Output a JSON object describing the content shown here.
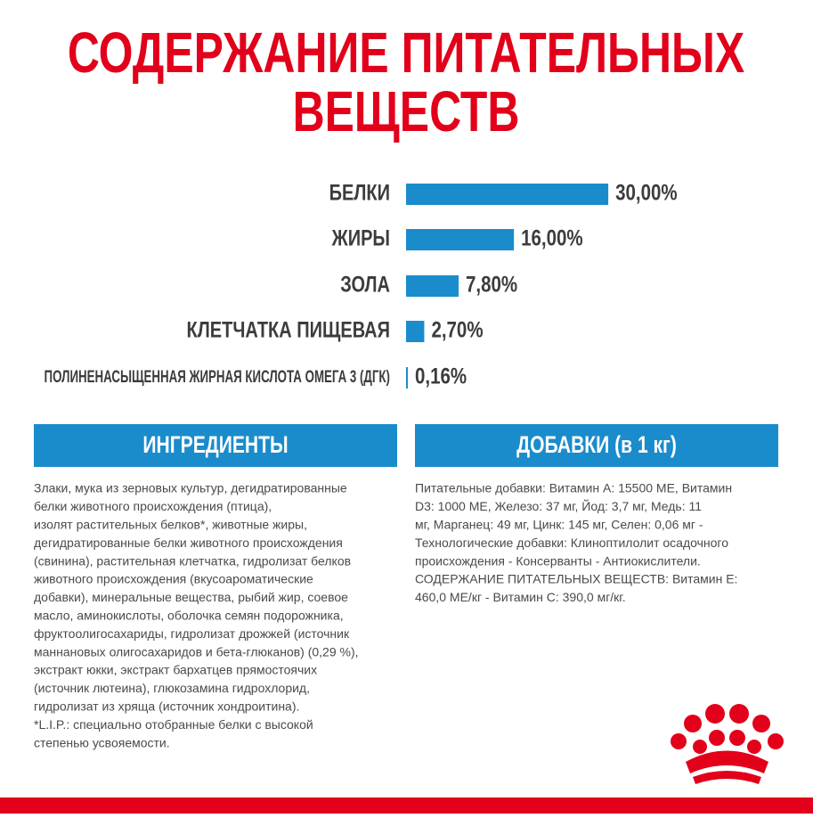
{
  "chart_data": {
    "type": "bar",
    "orientation": "horizontal",
    "title": [
      "СОДЕРЖАНИЕ ПИТАТЕЛЬНЫХ",
      "ВЕЩЕСТВ"
    ],
    "categories": [
      "БЕЛКИ",
      "ЖИРЫ",
      "ЗОЛА",
      "КЛЕТЧАТКА ПИЩЕВАЯ",
      "ПОЛИНЕНАСЫЩЕННАЯ ЖИРНАЯ КИСЛОТА ОМЕГА 3 (ДГК)"
    ],
    "values": [
      30,
      16,
      7.8,
      2.7,
      0.16
    ],
    "value_labels": [
      "30,00%",
      "16,00%",
      "7,80%",
      "2,70%",
      "0,16%"
    ],
    "color": "#1a8ccc"
  },
  "ingredients": {
    "heading": "ИНГРЕДИЕНТЫ",
    "lines": [
      "Злаки, мука из зерновых культур, дегидратированные",
      "белки животного происхождения (птица),",
      "изолят растительных белков*, животные жиры,",
      "дегидратированные белки животного происхождения",
      "(свинина), растительная клетчатка, гидролизат белков",
      "животного происхождения (вкусоароматические",
      "добавки), минеральные вещества, рыбий жир, соевое",
      "масло, аминокислоты, оболочка семян подорожника,",
      "фруктоолигосахариды, гидролизат дрожжей (источник",
      "маннановых олигосахаридов и бета-глюканов) (0,29 %),",
      "экстракт юкки, экстракт бархатцев прямостоячих",
      "(источник лютеина), глюкозамина гидрохлорид,",
      "гидролизат из хряща (источник хондроитина).",
      "*L.I.P.: специально отобранные белки с высокой",
      "степенью усвояемости."
    ]
  },
  "additives": {
    "heading": "ДОБАВКИ (в 1 кг)",
    "lines": [
      "Питательные добавки: Витамин А: 15500 МЕ, Витамин",
      "D3: 1000 МЕ, Железо: 37 мг, Йод: 3,7 мг, Медь: 11",
      "мг, Марганец: 49 мг, Цинк: 145 мг, Селен: 0,06 мг -",
      "Технологические добавки: Клиноптилолит осадочного",
      "происхождения - Консерванты - Антиокислители.",
      "СОДЕРЖАНИЕ ПИТАТЕЛЬНЫХ ВЕЩЕСТВ: Витамин Е:",
      "460,0 МЕ/кг - Витамин С: 390,0 мг/кг."
    ]
  }
}
